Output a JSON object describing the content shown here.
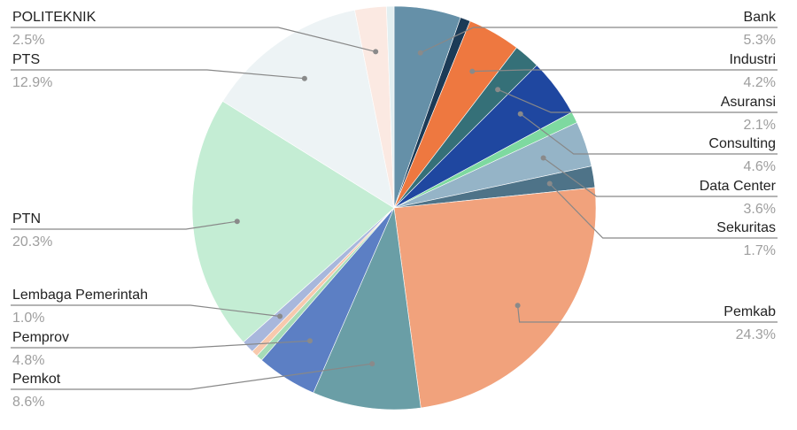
{
  "chart_data": {
    "type": "pie",
    "slices": [
      {
        "label": "Bank",
        "value_text": "5.3%",
        "value": 5.3,
        "color": "#6590a8",
        "side": "right"
      },
      {
        "label": "",
        "value_text": "",
        "value": 0.8,
        "color": "#1c3b57",
        "side": "none"
      },
      {
        "label": "Industri",
        "value_text": "4.2%",
        "value": 4.2,
        "color": "#ee7840",
        "side": "right"
      },
      {
        "label": "Asuransi",
        "value_text": "2.1%",
        "value": 2.1,
        "color": "#357078",
        "side": "right"
      },
      {
        "label": "Consulting",
        "value_text": "4.6%",
        "value": 4.6,
        "color": "#1f47a0",
        "side": "right"
      },
      {
        "label": "",
        "value_text": "",
        "value": 0.9,
        "color": "#7ed9a0",
        "side": "none"
      },
      {
        "label": "Data Center",
        "value_text": "3.6%",
        "value": 3.6,
        "color": "#95b4c7",
        "side": "right"
      },
      {
        "label": "Sekuritas",
        "value_text": "1.7%",
        "value": 1.7,
        "color": "#4e7388",
        "side": "right"
      },
      {
        "label": "Pemkab",
        "value_text": "24.3%",
        "value": 24.3,
        "color": "#f1a27c",
        "side": "right"
      },
      {
        "label": "Pemkot",
        "value_text": "8.6%",
        "value": 8.6,
        "color": "#6a9ea6",
        "side": "left"
      },
      {
        "label": "Pemprov",
        "value_text": "4.8%",
        "value": 4.8,
        "color": "#5c7fc4",
        "side": "left"
      },
      {
        "label": "",
        "value_text": "",
        "value": 0.5,
        "color": "#a6dcb7",
        "side": "none"
      },
      {
        "label": "",
        "value_text": "",
        "value": 0.5,
        "color": "#f7c9ad",
        "side": "none"
      },
      {
        "label": "Lembaga Pemerintah",
        "value_text": "1.0%",
        "value": 1.0,
        "color": "#a8b7dc",
        "side": "left"
      },
      {
        "label": "PTN",
        "value_text": "20.3%",
        "value": 20.3,
        "color": "#c4edd4",
        "side": "left"
      },
      {
        "label": "PTS",
        "value_text": "12.9%",
        "value": 12.9,
        "color": "#edf3f5",
        "side": "left"
      },
      {
        "label": "POLITEKNIK",
        "value_text": "2.5%",
        "value": 2.5,
        "color": "#fbe9e2",
        "side": "left"
      },
      {
        "label": "",
        "value_text": "",
        "value": 0.6,
        "color": "#e3eff1",
        "side": "none"
      }
    ]
  }
}
